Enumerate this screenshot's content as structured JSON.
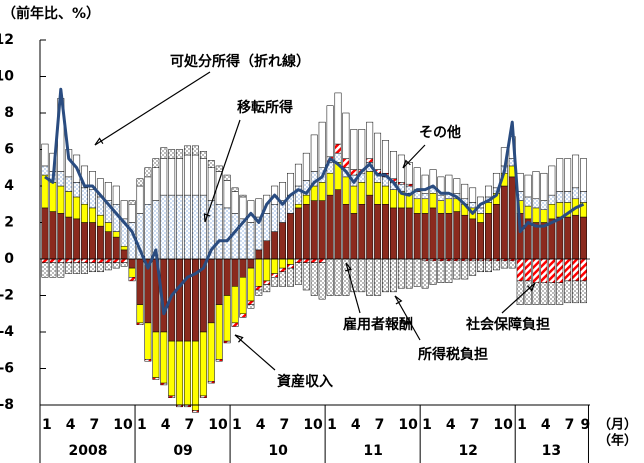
{
  "chart_data": {
    "type": "bar",
    "y_label": "（前年比、%）",
    "x_unit": "（月）",
    "year_unit": "（年）",
    "categories": [
      "1",
      null,
      null,
      "4",
      null,
      null,
      "7",
      null,
      null,
      "10",
      null,
      null,
      "1",
      null,
      null,
      "4",
      null,
      null,
      "7",
      null,
      null,
      "10",
      null,
      null,
      "1",
      null,
      null,
      "4",
      null,
      null,
      "7",
      null,
      null,
      "10",
      null,
      null,
      "1",
      null,
      null,
      "4",
      null,
      null,
      "7",
      null,
      null,
      "10",
      null,
      null,
      "1",
      null,
      null,
      "4",
      null,
      null,
      "7",
      null,
      null,
      "10",
      null,
      null,
      "1",
      null,
      null,
      "4",
      null,
      null,
      "7",
      null,
      "9"
    ],
    "years": [
      "2008",
      "09",
      "10",
      "11",
      "12",
      "13"
    ],
    "ylim": [
      -8,
      12
    ],
    "yticks": [
      -8,
      -6,
      -4,
      -2,
      0,
      2,
      4,
      6,
      8,
      10,
      12
    ],
    "series": [
      {
        "name": "雇用者報酬",
        "color": "#8b2a1e",
        "fill": "solid",
        "values": [
          2.8,
          2.6,
          2.5,
          2.3,
          2.2,
          2.0,
          2.0,
          1.8,
          1.5,
          1.2,
          0.5,
          -0.5,
          -2.5,
          -3.5,
          -4.0,
          -4.0,
          -4.5,
          -4.5,
          -4.5,
          -4.5,
          -4.0,
          -3.5,
          -2.5,
          -2.0,
          -1.5,
          -1.0,
          -0.5,
          0.5,
          1.0,
          1.5,
          2.0,
          2.5,
          2.8,
          3.0,
          3.2,
          3.2,
          3.5,
          3.8,
          3.0,
          2.5,
          3.0,
          3.5,
          3.0,
          3.0,
          2.8,
          2.8,
          2.8,
          2.5,
          2.5,
          2.8,
          2.5,
          2.5,
          2.6,
          2.4,
          2.2,
          2.0,
          2.5,
          3.0,
          4.0,
          4.5,
          2.5,
          2.2,
          2.0,
          2.0,
          2.2,
          2.3,
          2.3,
          2.4,
          2.3
        ]
      },
      {
        "name": "資産収入",
        "color": "#ffff00",
        "fill": "solid",
        "values": [
          1.8,
          1.6,
          1.5,
          1.4,
          1.2,
          1.0,
          0.8,
          0.6,
          0.5,
          0.3,
          0.2,
          -0.5,
          -1.0,
          -2.0,
          -2.5,
          -2.8,
          -3.0,
          -3.5,
          -3.5,
          -3.8,
          -3.5,
          -3.2,
          -3.0,
          -2.5,
          -2.0,
          -2.0,
          -1.8,
          -1.5,
          -1.2,
          -0.8,
          -0.5,
          -0.3,
          0.2,
          0.5,
          0.8,
          1.0,
          1.2,
          1.5,
          1.5,
          1.5,
          1.2,
          1.3,
          1.2,
          1.0,
          1.0,
          0.9,
          0.8,
          0.8,
          0.8,
          0.8,
          0.7,
          0.8,
          0.7,
          0.6,
          0.6,
          0.5,
          0.6,
          0.6,
          0.7,
          0.6,
          0.7,
          0.7,
          0.8,
          0.7,
          0.8,
          0.8,
          0.8,
          0.9,
          0.8
        ]
      },
      {
        "name": "移転所得",
        "color": "#a9c4e8",
        "fill": "dots",
        "values": [
          0.5,
          0.6,
          0.8,
          0.8,
          0.8,
          0.9,
          1.0,
          1.0,
          1.2,
          1.5,
          1.5,
          2.0,
          2.5,
          3.0,
          3.2,
          3.5,
          3.5,
          3.5,
          3.5,
          3.5,
          3.5,
          3.2,
          3.0,
          2.8,
          2.5,
          2.2,
          2.0,
          1.8,
          1.5,
          1.5,
          1.2,
          1.0,
          1.0,
          0.8,
          0.8,
          0.8,
          0.6,
          0.5,
          0.5,
          0.6,
          0.5,
          0.5,
          0.5,
          0.5,
          0.4,
          0.4,
          0.4,
          0.4,
          0.3,
          0.3,
          0.3,
          0.3,
          0.3,
          0.3,
          0.3,
          0.3,
          0.3,
          0.3,
          0.4,
          0.4,
          0.5,
          0.5,
          0.5,
          0.5,
          0.5,
          0.6,
          0.6,
          0.6,
          0.6
        ]
      },
      {
        "name": "社会保障負担",
        "color": "#ff0000",
        "fill": "hatch",
        "values": [
          -0.2,
          -0.2,
          -0.2,
          -0.2,
          -0.2,
          -0.2,
          -0.2,
          -0.2,
          -0.2,
          -0.2,
          -0.2,
          -0.2,
          -0.1,
          -0.1,
          -0.1,
          -0.1,
          -0.1,
          -0.1,
          -0.1,
          -0.1,
          -0.1,
          -0.1,
          -0.1,
          -0.1,
          -0.2,
          -0.2,
          -0.2,
          -0.2,
          -0.2,
          -0.2,
          -0.2,
          -0.2,
          -0.2,
          -0.2,
          -0.2,
          -0.2,
          0.3,
          0.5,
          0.5,
          0.3,
          0.2,
          0.2,
          0.2,
          0.2,
          0.2,
          0.1,
          0.1,
          0.1,
          -0.1,
          -0.1,
          -0.1,
          -0.1,
          -0.1,
          -0.1,
          -0.1,
          -0.1,
          -0.1,
          -0.1,
          -0.1,
          -0.1,
          -1.2,
          -1.2,
          -1.3,
          -1.3,
          -1.3,
          -1.3,
          -1.2,
          -1.2,
          -1.2
        ]
      },
      {
        "name": "その他",
        "color": "#ffffff",
        "fill": "solid",
        "values": [
          1.2,
          1.0,
          4.0,
          1.5,
          1.5,
          1.2,
          1.0,
          1.0,
          1.0,
          1.0,
          1.0,
          1.0,
          1.5,
          1.5,
          1.8,
          2.0,
          2.0,
          2.0,
          2.2,
          2.2,
          2.0,
          1.8,
          1.8,
          1.5,
          1.2,
          1.2,
          1.2,
          1.0,
          1.0,
          1.0,
          1.0,
          1.2,
          1.2,
          1.5,
          2.0,
          2.5,
          2.8,
          2.8,
          2.5,
          2.2,
          2.2,
          2.0,
          2.0,
          1.8,
          1.5,
          1.5,
          1.2,
          1.2,
          1.0,
          1.0,
          1.0,
          1.0,
          0.8,
          0.8,
          0.8,
          0.6,
          0.6,
          0.8,
          1.0,
          1.2,
          1.0,
          1.2,
          1.5,
          1.5,
          1.6,
          1.8,
          1.8,
          1.8,
          1.8
        ]
      },
      {
        "name": "所得税負担",
        "color": "#8c8c8c",
        "fill": "dots",
        "values": [
          -0.8,
          -0.8,
          -0.8,
          -0.6,
          -0.6,
          -0.6,
          -0.5,
          -0.5,
          -0.4,
          -0.3,
          -0.2,
          0.2,
          0.4,
          0.5,
          0.5,
          0.6,
          0.5,
          0.5,
          0.5,
          0.5,
          0.4,
          0.4,
          0.3,
          0.3,
          0.2,
          0.1,
          -0.2,
          -0.3,
          -0.4,
          -0.5,
          -0.8,
          -1.0,
          -1.2,
          -1.5,
          -1.8,
          -2.0,
          -2.0,
          -2.0,
          -2.0,
          -1.8,
          -1.8,
          -2.0,
          -2.0,
          -1.8,
          -1.8,
          -1.6,
          -1.6,
          -1.5,
          -1.5,
          -1.3,
          -1.2,
          -1.2,
          -1.0,
          -1.0,
          -0.8,
          -0.6,
          -0.6,
          -0.5,
          -0.4,
          -0.4,
          -1.3,
          -1.3,
          -1.2,
          -1.2,
          -1.2,
          -1.2,
          -1.2,
          -1.2,
          -1.2
        ]
      }
    ],
    "line": {
      "name": "可処分所得（折れ線）",
      "color": "#2a4c80",
      "values": [
        4.5,
        4.2,
        9.3,
        5.5,
        5.0,
        4.0,
        4.0,
        3.5,
        3.0,
        2.5,
        2.0,
        1.5,
        0.5,
        -0.5,
        0.5,
        -3.0,
        -2.0,
        -1.5,
        -1.0,
        -0.8,
        -0.5,
        0.5,
        1.0,
        1.0,
        1.5,
        2.0,
        2.5,
        2.0,
        3.0,
        3.5,
        3.0,
        3.5,
        3.8,
        3.6,
        4.2,
        4.5,
        5.5,
        5.2,
        4.8,
        4.2,
        4.8,
        5.2,
        4.6,
        4.6,
        4.2,
        3.6,
        3.5,
        3.8,
        3.8,
        4.0,
        3.6,
        3.6,
        3.4,
        3.0,
        2.5,
        3.0,
        3.2,
        3.5,
        4.8,
        7.5,
        1.5,
        2.0,
        1.8,
        1.8,
        2.0,
        2.2,
        2.5,
        2.8,
        3.0
      ]
    }
  }
}
